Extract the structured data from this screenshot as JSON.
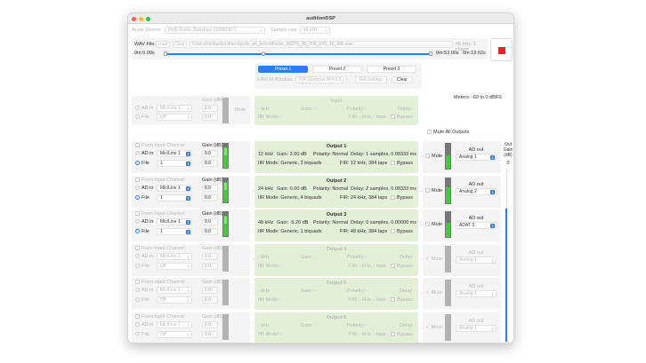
{
  "window": {
    "title": "auditionDSP"
  },
  "device": {
    "label": "Audio Device:",
    "value": "RME-Audio: Babyface (23180357)",
    "sr_label": "Sample rate:",
    "sr_value": "48 kHz"
  },
  "wav": {
    "label": "WAV File:",
    "load": "Load",
    "clear": "Clear",
    "path": "/Users/michaelsmithers/pode_a4_ferm/Mhicke_MSPN_90_906_04S_16_48k.wav",
    "info": "48 kHz, 1 chans",
    "start": "0m:0.00s",
    "end": "0m:53.00s",
    "current": "0m:19.62s",
    "progress": 0.37,
    "stop_color": "#e8242a"
  },
  "presets": {
    "items": [
      "Preset 1",
      "Preset 2",
      "Preset 3"
    ],
    "active": 0,
    "fir_label": "FIR/I M Window:",
    "fir_value": "FIR Designer M 4.0.5",
    "get_settings": "Get Settings",
    "clear": "Clear"
  },
  "input": {
    "ad_in": "AD in",
    "ad_value": "Mic/Line 1",
    "file": "File",
    "file_value": "Off",
    "gain_label": "Gain (dB)",
    "gain1": "0.0",
    "gain2": "0.0",
    "mute": "Mute",
    "title": "Input",
    "khz": "- kHz",
    "gain": "Gain: -",
    "polarity": "Polarity: -",
    "delay": "Delay: -",
    "iir": "IIR Mode: -",
    "fir": "FIR: - kHz, - taps",
    "bypass": "Bypass"
  },
  "meters_label": "Meters: -60 to 0 dBFS",
  "mute_all": "Mute All Outputs",
  "out_gain": {
    "label": "Out Gain (dB)",
    "value": "0"
  },
  "channel_labels": {
    "from_input": "From Input Channel",
    "gain": "Gain (dB)",
    "ad_in": "AD in",
    "file": "File",
    "mute": "Mute",
    "ad_out": "AD out",
    "bypass": "Bypass"
  },
  "outputs": [
    {
      "title": "Output 1",
      "active": true,
      "ad_value": "Mic/Line 1",
      "file_value": "1",
      "gain1": "0.0",
      "gain2": "0.0",
      "khz": "12 kHz",
      "gain": "Gain:  3.00 dB",
      "polarity": "Polarity: Normal",
      "delay": "Delay: 1 samples, 0.08333 ms",
      "iir": "IIR Mode: Generic, 2 biquads",
      "fir": "FIR: 12 kHz, 384 taps",
      "muted": false,
      "ad_out": "Analog 1",
      "in_level": 0.85,
      "out_level": 0.55
    },
    {
      "title": "Output 2",
      "active": true,
      "ad_value": "Mic/Line 1",
      "file_value": "1",
      "gain1": "0.0",
      "gain2": "0.0",
      "khz": "24 kHz",
      "gain": "Gain:  0.00 dB",
      "polarity": "Polarity: Normal",
      "delay": "Delay: 2 samples, 0.08333 ms",
      "iir": "IIR Mode: Generic, 4 biquads",
      "fir": "FIR: 24 kHz, 384 taps",
      "muted": false,
      "ad_out": "Analog 2",
      "in_level": 0.85,
      "out_level": 0.65
    },
    {
      "title": "Output 3",
      "active": true,
      "ad_value": "Mic/Line 1",
      "file_value": "1",
      "gain1": "0.0",
      "gain2": "0.0",
      "khz": "48 kHz",
      "gain": "Gain: -5.20 dB",
      "polarity": "Polarity: Normal",
      "delay": "Delay: 0 samples, 0.00000 ms",
      "iir": "IIR Mode: Generic, 1 biquads",
      "fir": "FIR: 48 kHz, 384 taps",
      "muted": false,
      "ad_out": "ADAT 3",
      "in_level": 0.85,
      "out_level": 0.6
    },
    {
      "title": "Output 4",
      "active": false,
      "ad_value": "Mic/Line 1",
      "file_value": "Off",
      "gain1": "0.0",
      "gain2": "0.0",
      "khz": "- kHz",
      "gain": "Gain: -",
      "polarity": "Polarity: -",
      "delay": "Delay: -",
      "iir": "IIR Mode: -",
      "fir": "FIR: - kHz, - taps",
      "muted": true,
      "ad_out": "Analog 1",
      "in_level": 0,
      "out_level": 0
    },
    {
      "title": "Output 5",
      "active": false,
      "ad_value": "Mic/Line 1",
      "file_value": "Off",
      "gain1": "0.0",
      "gain2": "0.0",
      "khz": "- kHz",
      "gain": "Gain: -",
      "polarity": "Polarity: -",
      "delay": "Delay: -",
      "iir": "IIR Mode: -",
      "fir": "FIR: - kHz, - taps",
      "muted": true,
      "ad_out": "Analog 1",
      "in_level": 0,
      "out_level": 0
    },
    {
      "title": "Output 6",
      "active": false,
      "ad_value": "Mic/Line 1",
      "file_value": "Off",
      "gain1": "0.0",
      "gain2": "0.0",
      "khz": "- kHz",
      "gain": "Gain: -",
      "polarity": "Polarity: -",
      "delay": "Delay: -",
      "iir": "IIR Mode: -",
      "fir": "FIR: - kHz, - taps",
      "muted": true,
      "ad_out": "Analog 1",
      "in_level": 0,
      "out_level": 0
    }
  ]
}
